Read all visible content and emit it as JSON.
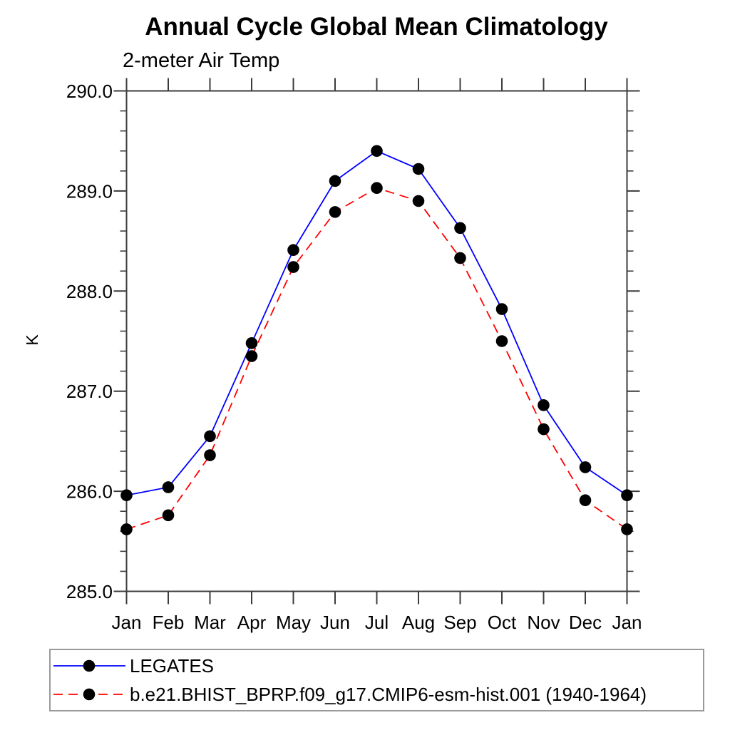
{
  "chart": {
    "title": "Annual Cycle Global Mean Climatology",
    "subtitle": "2-meter Air Temp",
    "ylabel": "K"
  },
  "chart_data": {
    "type": "line",
    "title": "Annual Cycle Global Mean Climatology",
    "subtitle": "2-meter Air Temp",
    "xlabel": "",
    "ylabel": "K",
    "categories": [
      "Jan",
      "Feb",
      "Mar",
      "Apr",
      "May",
      "Jun",
      "Jul",
      "Aug",
      "Sep",
      "Oct",
      "Nov",
      "Dec",
      "Jan"
    ],
    "ylim": [
      285.0,
      290.0
    ],
    "ytick_labels": [
      "285.0",
      "286.0",
      "287.0",
      "288.0",
      "289.0",
      "290.0"
    ],
    "ytick_major_step": 1.0,
    "ytick_minor_step": 0.2,
    "grid": false,
    "legend_position": "bottom-left-box",
    "marker": {
      "shape": "circle",
      "color": "#000000",
      "radius": 8.3
    },
    "axis_color": "#3c3c3c",
    "series": [
      {
        "name": "LEGATES",
        "color": "#0000ff",
        "line_style": "solid",
        "values": [
          285.96,
          286.04,
          286.55,
          287.48,
          288.41,
          289.1,
          289.4,
          289.22,
          288.63,
          287.82,
          286.86,
          286.24,
          285.96
        ]
      },
      {
        "name": "b.e21.BHIST_BPRP.f09_g17.CMIP6-esm-hist.001 (1940-1964)",
        "color": "#ff0000",
        "line_style": "dashed",
        "values": [
          285.62,
          285.76,
          286.36,
          287.35,
          288.24,
          288.79,
          289.03,
          288.9,
          288.33,
          287.5,
          286.62,
          285.91,
          285.62
        ]
      }
    ]
  }
}
